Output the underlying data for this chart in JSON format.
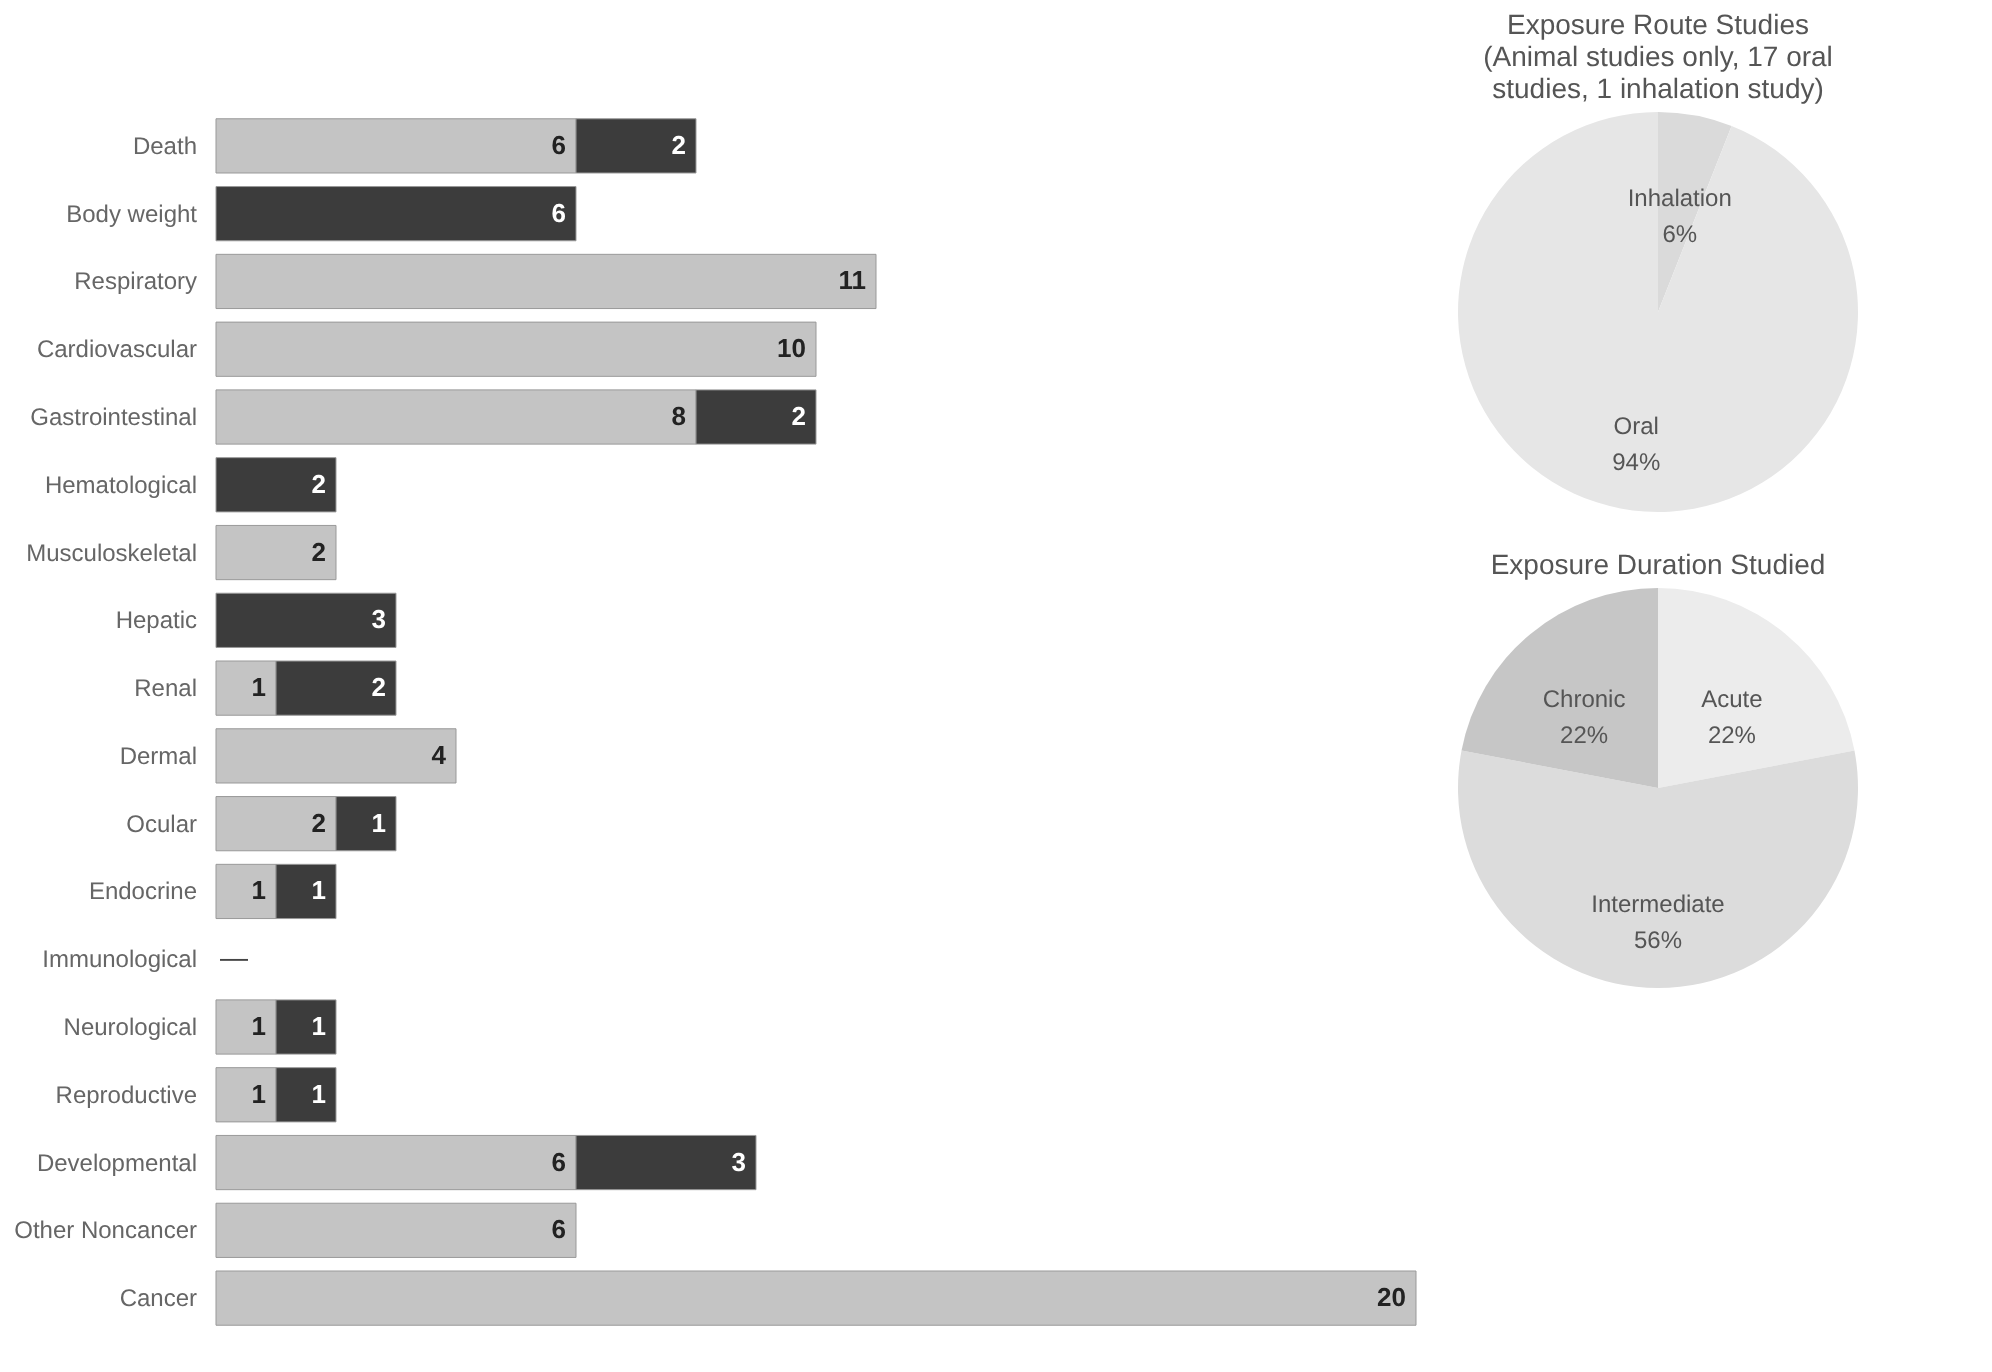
{
  "chart_data": [
    {
      "type": "bar",
      "orientation": "horizontal",
      "stacked": true,
      "data_labels": true,
      "tick_labels": "y",
      "categories": [
        "Death",
        "Body weight",
        "Respiratory",
        "Cardiovascular",
        "Gastrointestinal",
        "Hematological",
        "Musculoskeletal",
        "Hepatic",
        "Renal",
        "Dermal",
        "Ocular",
        "Endocrine",
        "Immunological",
        "Neurological",
        "Reproductive",
        "Developmental",
        "Other Noncancer",
        "Cancer"
      ],
      "series": [
        {
          "color": "#c4c4c4",
          "values": [
            6,
            null,
            11,
            10,
            8,
            null,
            2,
            null,
            1,
            4,
            2,
            1,
            null,
            1,
            1,
            6,
            6,
            20
          ]
        },
        {
          "color": "#3c3c3c",
          "values": [
            2,
            6,
            null,
            null,
            2,
            2,
            null,
            3,
            2,
            null,
            1,
            1,
            null,
            1,
            1,
            3,
            null,
            null
          ]
        }
      ],
      "annotations": [
        "—"
      ]
    },
    {
      "type": "pie",
      "title": [
        "Exposure Route Studies",
        "(Animal studies only, 17 oral",
        "studies, 1 inhalation study)"
      ],
      "categories": [
        "Inhalation",
        "Oral"
      ],
      "values": [
        6,
        94
      ],
      "value_labels": [
        "6%",
        "94%"
      ],
      "colors": [
        "#dadada",
        "#e6e6e6"
      ]
    },
    {
      "type": "pie",
      "title": "Exposure Duration Studied",
      "categories": [
        "Acute",
        "Intermediate",
        "Chronic"
      ],
      "values": [
        22,
        56,
        22
      ],
      "value_labels": [
        "22%",
        "56%",
        "22%"
      ],
      "colors": [
        "#ececec",
        "#dcdcdc",
        "#c6c6c6"
      ]
    }
  ]
}
